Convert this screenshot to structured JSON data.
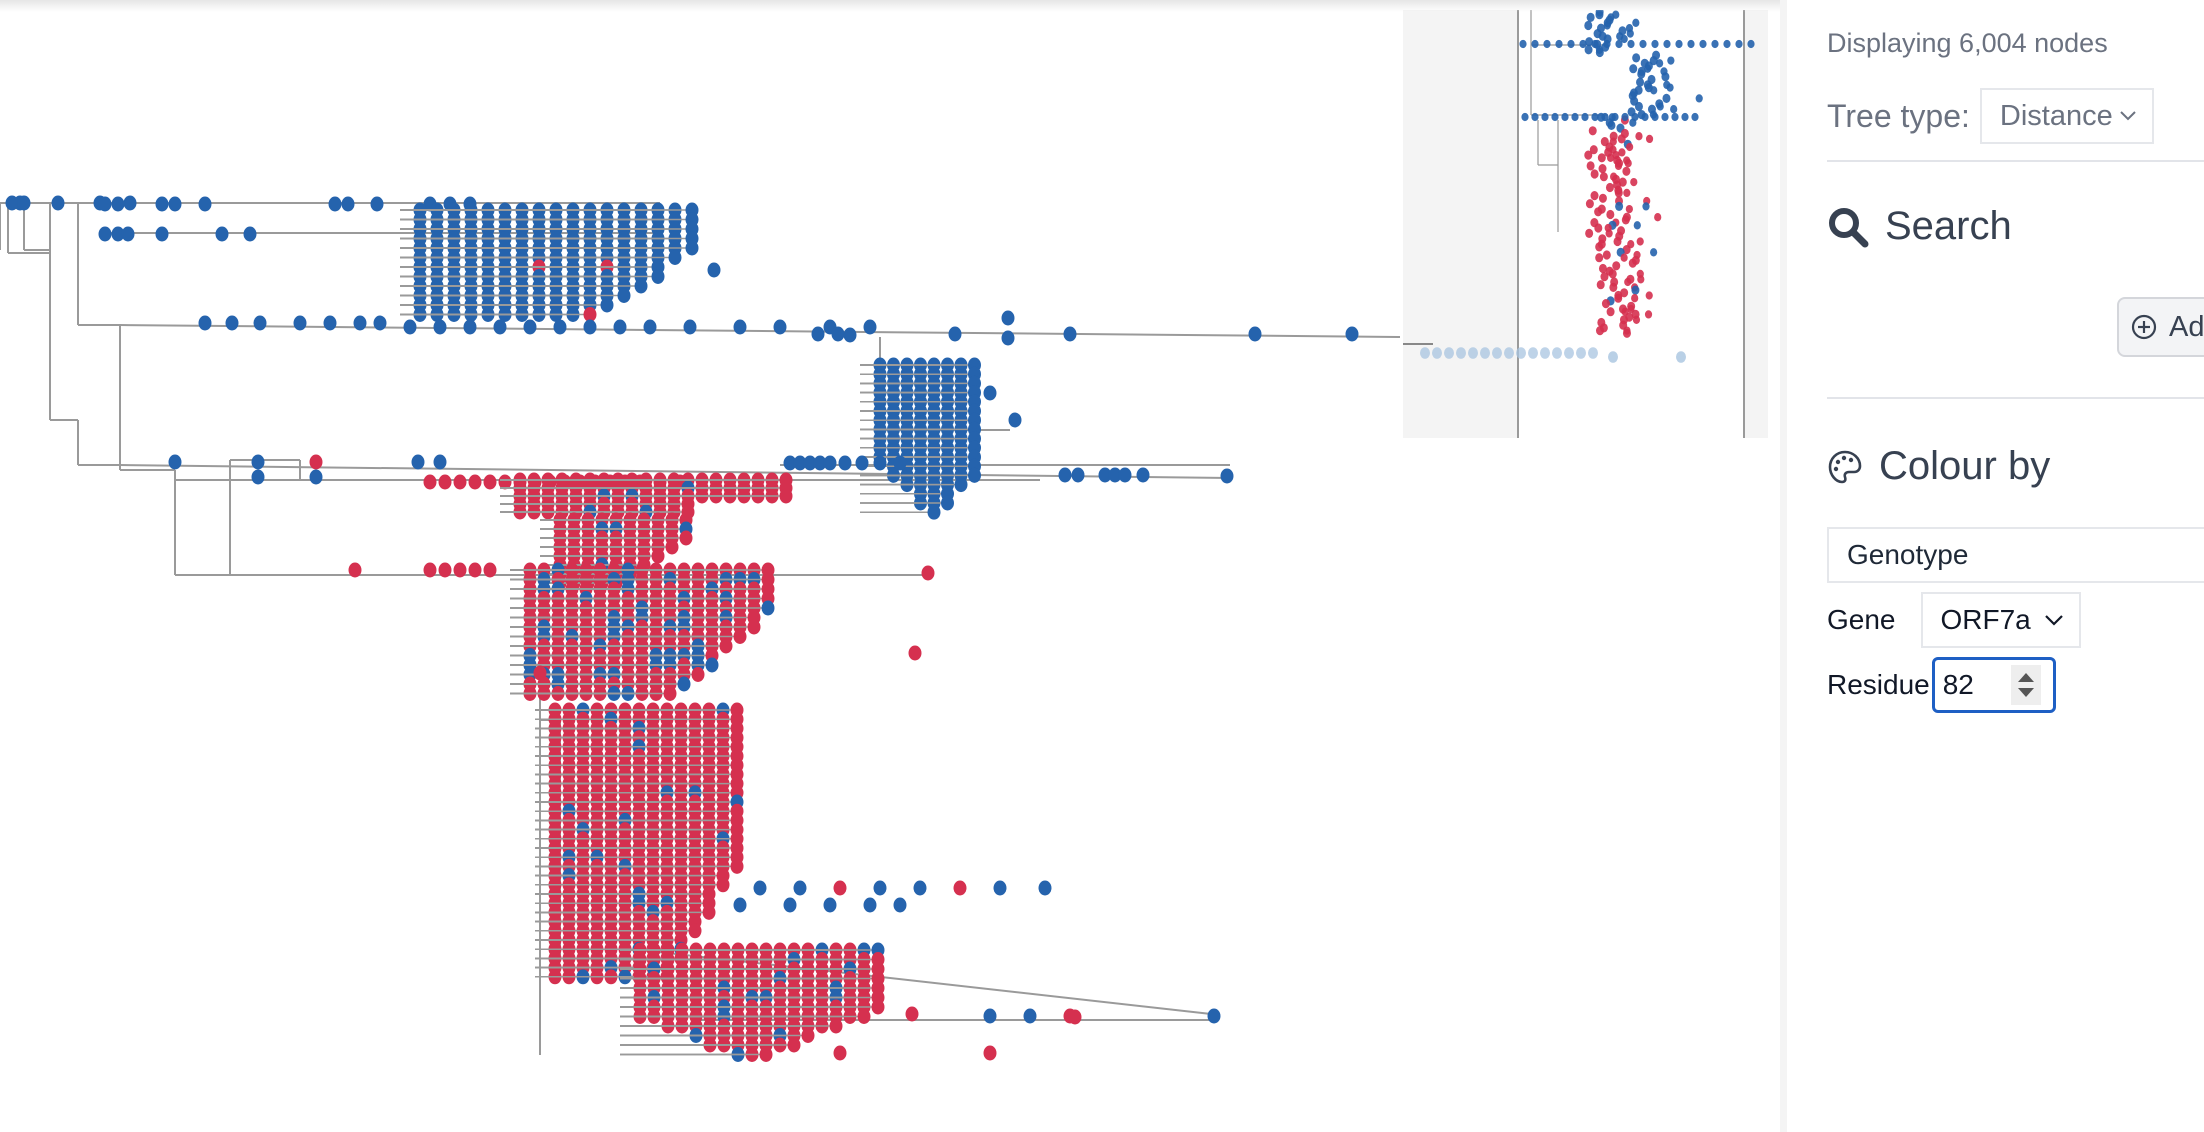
{
  "colors": {
    "genotype_a": "#2563ad",
    "genotype_b": "#d5304f",
    "branch": "#9a9a9a",
    "accent_focus": "#1e5fc4",
    "minimap_bg": "#f4f4f4"
  },
  "tree": {
    "legend_meaning": "Nodes coloured by genotype at ORF7a residue 82",
    "node_colors": [
      "blue",
      "red"
    ]
  },
  "panel": {
    "node_count": "Displaying 6,004 nodes",
    "tree_type_label": "Tree type:",
    "tree_type_value": "Distance",
    "search": {
      "title": "Search",
      "add_button_label": "Ad"
    },
    "colour_by": {
      "title": "Colour by",
      "mode_value": "Genotype",
      "gene_label": "Gene",
      "gene_value": "ORF7a",
      "residue_label": "Residue",
      "residue_value": "82"
    }
  },
  "icons": {
    "search": "search-icon",
    "palette": "palette-icon",
    "add": "plus-circle-icon",
    "chevron": "chevron-down-icon"
  }
}
